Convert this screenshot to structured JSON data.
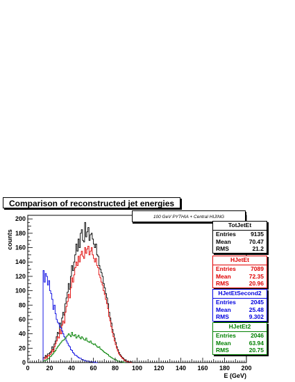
{
  "title": "Comparison of reconstructed jet energies",
  "subtitle": "100 GeV PYTHIA + Central HIJING",
  "chart_data": {
    "type": "histogram",
    "xlabel": "E (GeV)",
    "ylabel": "counts",
    "xlim": [
      0,
      200
    ],
    "ylim": [
      0,
      205
    ],
    "xticks": [
      "0",
      "20",
      "40",
      "60",
      "80",
      "100",
      "120",
      "140",
      "160",
      "180",
      "200"
    ],
    "yticks": [
      "0",
      "20",
      "40",
      "60",
      "80",
      "100",
      "120",
      "140",
      "160",
      "180",
      "200"
    ],
    "bin_width": 1,
    "series": [
      {
        "name": "TotJetEt",
        "color": "#000000",
        "stats": {
          "Entries": "9135",
          "Mean": "70.47",
          "RMS": "21.2"
        },
        "x_start": 14,
        "values": [
          7,
          7,
          10,
          8,
          12,
          12,
          14,
          16,
          22,
          18,
          26,
          30,
          36,
          42,
          40,
          55,
          48,
          62,
          70,
          66,
          82,
          90,
          98,
          110,
          102,
          120,
          135,
          128,
          140,
          150,
          165,
          155,
          172,
          160,
          180,
          185,
          170,
          168,
          195,
          175,
          182,
          188,
          170,
          178,
          180,
          172,
          165,
          160,
          165,
          150,
          148,
          135,
          130,
          125,
          120,
          110,
          104,
          96,
          90,
          82,
          70,
          62,
          55,
          46,
          40,
          34,
          28,
          22,
          18,
          14,
          11,
          9,
          7,
          6,
          4,
          3,
          2,
          2,
          1,
          1,
          1
        ]
      },
      {
        "name": "HJetEt",
        "color": "#e00000",
        "stats": {
          "Entries": "7089",
          "Mean": "72.35",
          "RMS": "20.96"
        },
        "x_start": 14,
        "values": [
          5,
          5,
          8,
          6,
          10,
          9,
          11,
          13,
          18,
          15,
          22,
          26,
          30,
          36,
          34,
          46,
          40,
          52,
          58,
          55,
          70,
          78,
          85,
          95,
          90,
          104,
          118,
          112,
          122,
          132,
          140,
          135,
          148,
          140,
          150,
          155,
          148,
          145,
          160,
          152,
          158,
          162,
          150,
          155,
          160,
          150,
          145,
          140,
          145,
          135,
          132,
          122,
          118,
          112,
          108,
          100,
          95,
          88,
          82,
          75,
          64,
          58,
          50,
          42,
          36,
          30,
          25,
          20,
          16,
          12,
          10,
          8,
          6,
          5,
          3,
          2,
          2,
          1,
          1,
          1,
          0
        ]
      },
      {
        "name": "HJetEtSecond2",
        "color": "#0000e0",
        "stats": {
          "Entries": "2045",
          "Mean": "25.48",
          "RMS": "9.302"
        },
        "x_start": 14,
        "values": [
          128,
          112,
          124,
          120,
          108,
          114,
          100,
          96,
          88,
          74,
          80,
          68,
          60,
          56,
          54,
          50,
          48,
          44,
          40,
          36,
          34,
          30,
          27,
          24,
          22,
          18,
          17,
          14,
          12,
          10,
          10,
          8,
          7,
          6,
          6,
          4,
          4,
          3,
          3,
          2,
          2,
          2,
          1,
          1,
          1,
          1,
          0,
          1,
          0,
          0
        ]
      },
      {
        "name": "HJetEt2",
        "color": "#008000",
        "stats": {
          "Entries": "2046",
          "Mean": "63.94",
          "RMS": "20.75"
        },
        "x_start": 14,
        "values": [
          2,
          3,
          3,
          4,
          5,
          6,
          8,
          9,
          11,
          13,
          15,
          17,
          20,
          22,
          24,
          26,
          28,
          30,
          31,
          32,
          34,
          36,
          38,
          40,
          38,
          36,
          42,
          38,
          37,
          39,
          34,
          36,
          38,
          35,
          33,
          36,
          34,
          32,
          31,
          34,
          30,
          29,
          28,
          30,
          27,
          26,
          25,
          26,
          24,
          22,
          21,
          22,
          19,
          18,
          17,
          15,
          14,
          13,
          12,
          11,
          9,
          8,
          7,
          6,
          5,
          4,
          4,
          3,
          2,
          2,
          1,
          1,
          1,
          0,
          0
        ]
      }
    ]
  }
}
